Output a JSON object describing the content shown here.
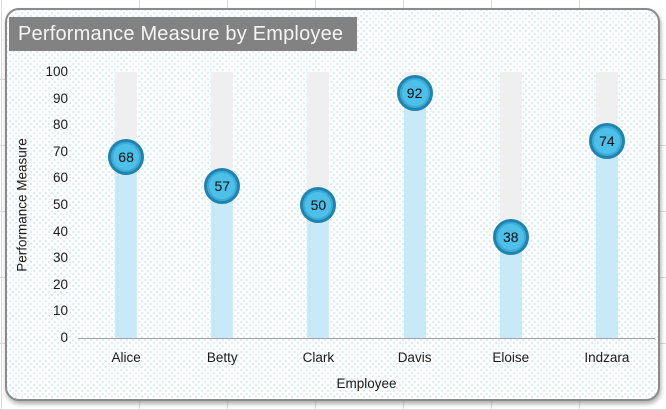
{
  "chart_data": {
    "type": "bar",
    "title": "Performance Measure by Employee",
    "categories": [
      "Alice",
      "Betty",
      "Clark",
      "Davis",
      "Eloise",
      "Indzara"
    ],
    "values": [
      68,
      57,
      50,
      92,
      38,
      74
    ],
    "xlabel": "Employee",
    "ylabel": "Performance Measure",
    "ylim": [
      0,
      100
    ],
    "yticks": [
      0,
      10,
      20,
      30,
      40,
      50,
      60,
      70,
      80,
      90,
      100
    ],
    "grid": false,
    "legend": "none",
    "data_labels": "inside circular markers at bar top",
    "track_max": 100
  },
  "colors": {
    "title_bg": "#828282",
    "title_text": "#f5f5f5",
    "track": "#efefef",
    "bar": "#c8e9f8",
    "marker_fill": "#4cc0e8",
    "marker_border": "#1e83b0",
    "axis_text": "#1a1a1a",
    "axis_line": "#a3a3a3",
    "chart_border": "#8a8a8a",
    "dot_pattern": "#d7edf4"
  }
}
